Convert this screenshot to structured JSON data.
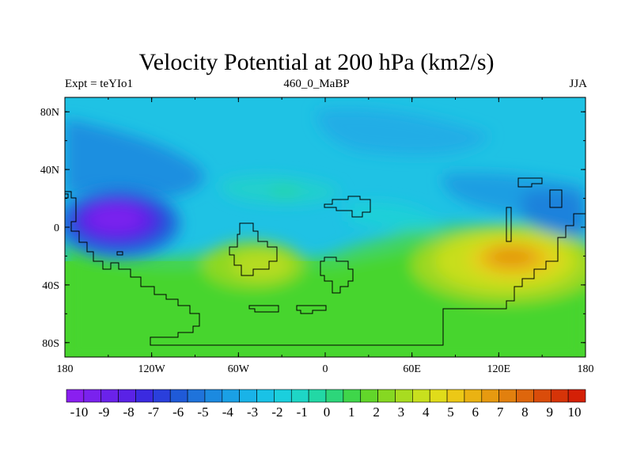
{
  "title": "Velocity Potential at 200 hPa (km2/s)",
  "subtitle_left": "Expt = teYIo1",
  "subtitle_center": "460_0_MaBP",
  "subtitle_right": "JJA",
  "lon_ticks": [
    "180",
    "120W",
    "60W",
    "0",
    "60E",
    "120E",
    "180"
  ],
  "lat_ticks": [
    "80N",
    "40N",
    "0",
    "40S",
    "80S"
  ],
  "colorbar_labels": [
    "-10",
    "-9",
    "-8",
    "-7",
    "-6",
    "-5",
    "-4",
    "-3",
    "-2",
    "-1",
    "0",
    "1",
    "2",
    "3",
    "4",
    "5",
    "6",
    "7",
    "8",
    "9",
    "10"
  ],
  "colorbar_colors": [
    "#8a1ff0",
    "#7a22ee",
    "#6a22ea",
    "#5a22e6",
    "#3b2ae0",
    "#2a3fdc",
    "#1f5ad8",
    "#1f73db",
    "#1c8ae0",
    "#1aa0e5",
    "#19b3e8",
    "#19c2e6",
    "#1bcfdd",
    "#1ed6c6",
    "#22d8a5",
    "#2dd67a",
    "#3fd64a",
    "#62d62a",
    "#86d822",
    "#a8dc20",
    "#c8e01e",
    "#e0dc1a",
    "#ecc816",
    "#eab212",
    "#e69a10",
    "#e2800e",
    "#de660c",
    "#da4c0a",
    "#d63408",
    "#d42006"
  ]
}
